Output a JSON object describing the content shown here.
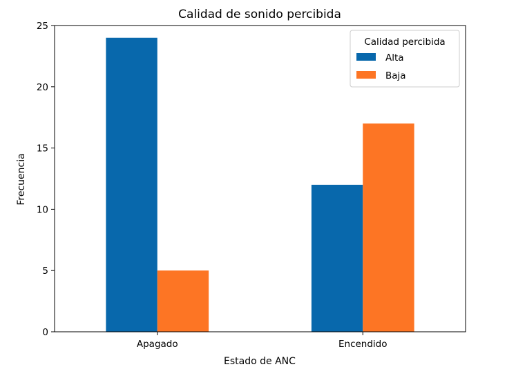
{
  "chart_data": {
    "type": "bar",
    "title": "Calidad de sonido percibida",
    "xlabel": "Estado de ANC",
    "ylabel": "Frecuencia",
    "categories": [
      "Apagado",
      "Encendido"
    ],
    "series": [
      {
        "name": "Alta",
        "values": [
          24,
          12
        ],
        "color": "#0868ac"
      },
      {
        "name": "Baja",
        "values": [
          5,
          17
        ],
        "color": "#fd7524"
      }
    ],
    "ylim": [
      0,
      25
    ],
    "yticks": [
      0,
      5,
      10,
      15,
      20,
      25
    ],
    "grid": false,
    "legend": {
      "title": "Calidad percibida",
      "placement": "top-right"
    }
  }
}
